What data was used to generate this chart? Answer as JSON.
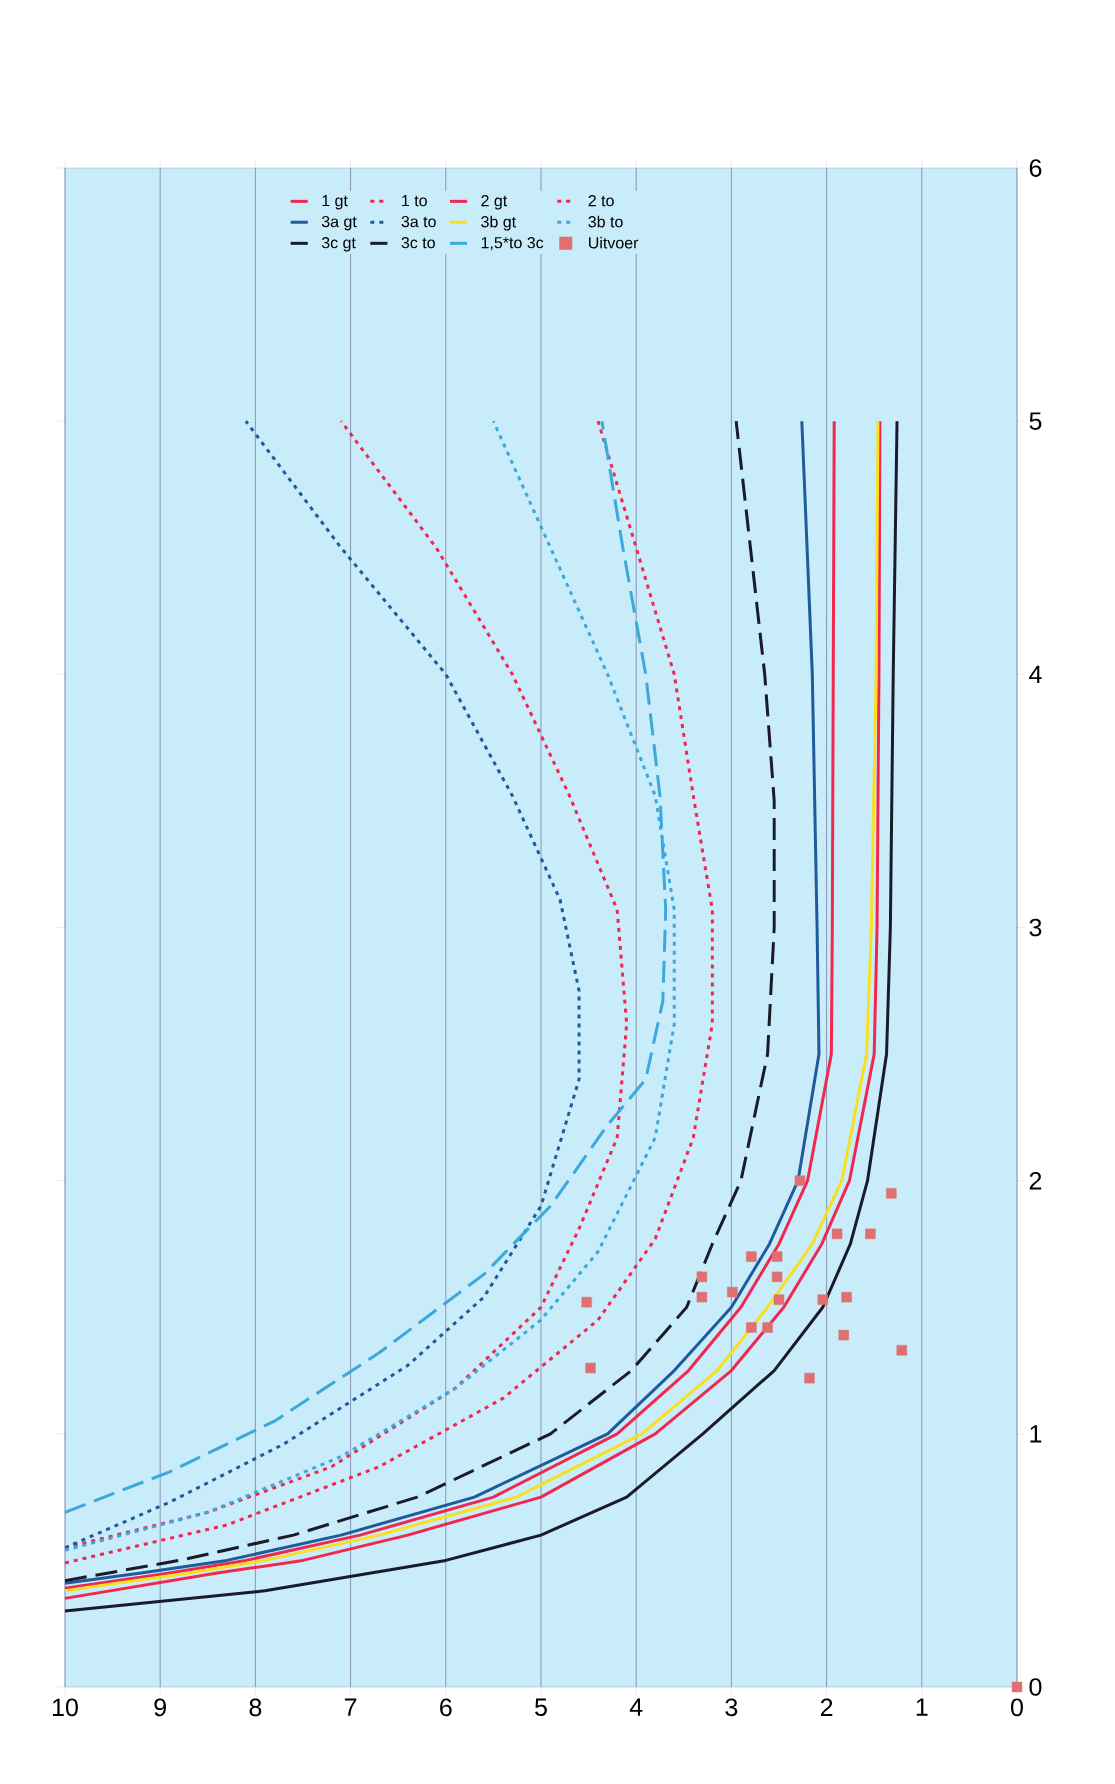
{
  "chart_data": {
    "type": "line",
    "xlim": [
      10,
      0
    ],
    "ylim": [
      0,
      6
    ],
    "xticks": [
      10,
      9,
      8,
      7,
      6,
      5,
      4,
      3,
      2,
      1,
      0
    ],
    "yticks": [
      0,
      1,
      2,
      3,
      4,
      5,
      6
    ],
    "grid": "x",
    "legend": "top",
    "series": [
      {
        "name": "1 gt",
        "color": "#f02850",
        "line_style": "solid",
        "values": [
          0.35,
          0.45,
          0.5,
          0.6,
          0.75,
          1,
          1.25,
          1.5,
          1.75,
          2,
          2.5,
          3,
          4,
          5
        ],
        "x": [
          10,
          8.4,
          7.5,
          6.4,
          5.0,
          3.8,
          3.0,
          2.45,
          2.05,
          1.76,
          1.5,
          1.47,
          1.45,
          1.44
        ]
      },
      {
        "name": "1 to",
        "color": "#f02850",
        "line_style": "dotted",
        "values": [
          0.49,
          0.64,
          0.87,
          1.14,
          1.45,
          1.77,
          2.17,
          2.62,
          3.07,
          3.52,
          4,
          4.5,
          5
        ],
        "x": [
          10,
          8.3,
          6.7,
          5.4,
          4.4,
          3.8,
          3.4,
          3.2,
          3.2,
          3.4,
          3.6,
          4.0,
          4.4
        ]
      },
      {
        "name": "2 gt",
        "color": "#f02850",
        "line_style": "solid",
        "values": [
          0.39,
          0.45,
          0.5,
          0.6,
          0.75,
          1,
          1.25,
          1.5,
          1.75,
          2,
          2.5,
          3,
          4,
          5
        ],
        "x": [
          10,
          8.9,
          8.1,
          6.9,
          5.5,
          4.2,
          3.45,
          2.9,
          2.5,
          2.2,
          1.95,
          1.94,
          1.93,
          1.92
        ]
      },
      {
        "name": "2 to",
        "color": "#f02850",
        "line_style": "dotted",
        "values": [
          0.55,
          0.69,
          0.87,
          1.18,
          1.5,
          1.81,
          2.17,
          2.62,
          3.07,
          3.52,
          4,
          4.5,
          5
        ],
        "x": [
          10,
          8.5,
          7.2,
          5.9,
          5.0,
          4.6,
          4.2,
          4.1,
          4.2,
          4.7,
          5.3,
          6.1,
          7.1
        ]
      },
      {
        "name": "3a gt",
        "color": "#1f5a9a",
        "line_style": "solid",
        "values": [
          0.41,
          0.45,
          0.5,
          0.6,
          0.75,
          1,
          1.25,
          1.5,
          1.75,
          2,
          2.5,
          3,
          4,
          5
        ],
        "x": [
          10,
          9.2,
          8.3,
          7.1,
          5.7,
          4.3,
          3.6,
          3.0,
          2.6,
          2.3,
          2.08,
          2.1,
          2.15,
          2.26
        ]
      },
      {
        "name": "3a to",
        "color": "#1f5a9a",
        "line_style": "dotted",
        "values": [
          0.55,
          0.73,
          0.96,
          1.27,
          1.54,
          1.9,
          2.4,
          2.75,
          3.11,
          3.52,
          4,
          4.5,
          5
        ],
        "x": [
          10,
          8.9,
          7.7,
          6.4,
          5.6,
          5.0,
          4.6,
          4.6,
          4.8,
          5.3,
          6.0,
          7.1,
          8.1
        ]
      },
      {
        "name": "3b gt",
        "color": "#f8e020",
        "line_style": "solid",
        "values": [
          0.38,
          0.45,
          0.5,
          0.6,
          0.75,
          1,
          1.25,
          1.5,
          1.75,
          2,
          2.5,
          3,
          4,
          5
        ],
        "x": [
          10,
          8.7,
          7.9,
          6.7,
          5.26,
          3.94,
          3.15,
          2.62,
          2.15,
          1.84,
          1.58,
          1.53,
          1.48,
          1.46
        ]
      },
      {
        "name": "3b to",
        "color": "#3ca8dc",
        "line_style": "dotted",
        "values": [
          0.54,
          0.69,
          0.91,
          1.18,
          1.45,
          1.72,
          2.17,
          2.62,
          3.07,
          3.52,
          4,
          4.5,
          5
        ],
        "x": [
          10,
          8.5,
          7.1,
          5.9,
          5.0,
          4.4,
          3.8,
          3.6,
          3.6,
          3.8,
          4.3,
          4.9,
          5.5
        ]
      },
      {
        "name": "3c gt",
        "color": "#1a1a28",
        "line_style": "solid",
        "values": [
          0.3,
          0.38,
          0.5,
          0.6,
          0.75,
          1,
          1.25,
          1.5,
          1.75,
          2,
          2.5,
          3,
          4,
          5
        ],
        "x": [
          10,
          7.9,
          6.0,
          5.0,
          4.1,
          3.3,
          2.55,
          2.04,
          1.75,
          1.57,
          1.37,
          1.33,
          1.3,
          1.26
        ]
      },
      {
        "name": "3c to",
        "color": "#1a1a28",
        "line_style": "dashed",
        "values": [
          0.42,
          0.5,
          0.6,
          0.75,
          1,
          1.25,
          1.5,
          1.75,
          2,
          2.5,
          3,
          3.5,
          4,
          4.5,
          5
        ],
        "x": [
          10,
          8.8,
          7.6,
          6.3,
          4.9,
          4.05,
          3.47,
          3.2,
          2.9,
          2.62,
          2.55,
          2.55,
          2.65,
          2.8,
          2.95
        ]
      },
      {
        "name": "1,5*to 3c",
        "color": "#3ca8dc",
        "line_style": "dashed",
        "values": [
          0.69,
          0.85,
          1.05,
          1.32,
          1.63,
          1.9,
          2.22,
          2.4,
          2.71,
          3.07,
          3.52,
          4,
          4.5,
          5
        ],
        "x": [
          10,
          8.9,
          7.8,
          6.7,
          5.6,
          4.9,
          4.3,
          3.9,
          3.72,
          3.69,
          3.75,
          3.9,
          4.14,
          4.36
        ]
      },
      {
        "name": "Uitvoer",
        "type": "scatter",
        "marker": "square",
        "color": "#e07070",
        "values": [
          2.0,
          1.95,
          1.79,
          1.79,
          1.7,
          1.7,
          1.62,
          1.62,
          1.54,
          1.56,
          1.53,
          1.53,
          1.54,
          1.52,
          1.42,
          1.42,
          1.39,
          1.33,
          1.26,
          1.22,
          0
        ],
        "x": [
          2.28,
          1.32,
          1.89,
          1.54,
          2.79,
          2.52,
          3.31,
          2.52,
          3.31,
          2.99,
          2.5,
          2.04,
          1.79,
          4.52,
          2.79,
          2.62,
          1.82,
          1.21,
          4.48,
          2.18,
          0
        ]
      }
    ]
  }
}
